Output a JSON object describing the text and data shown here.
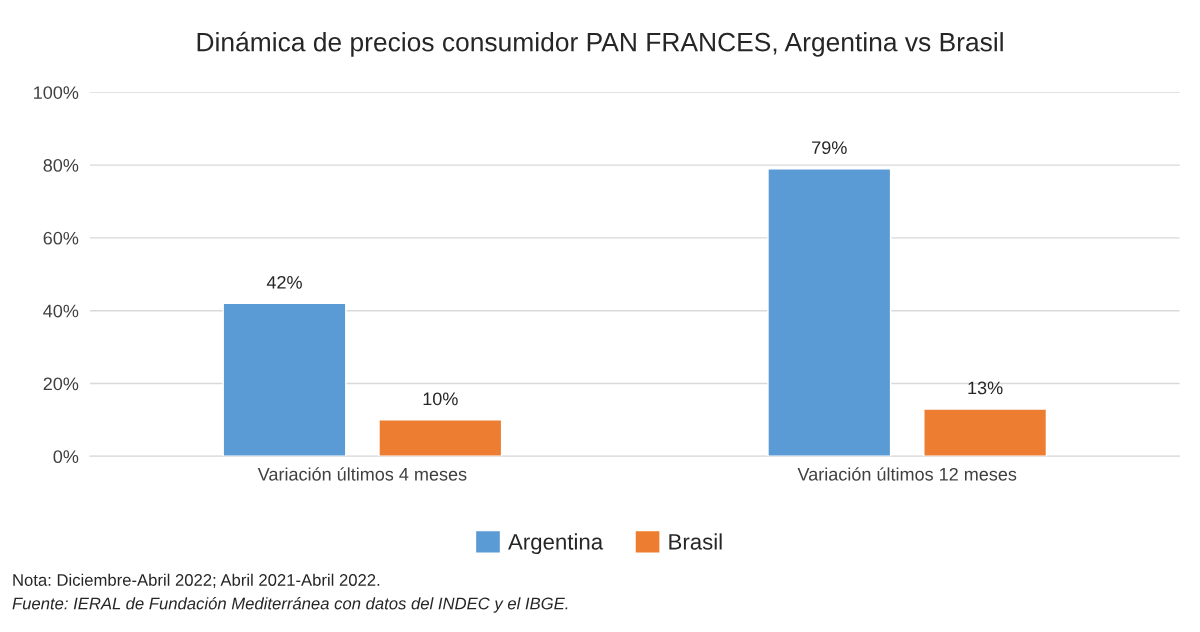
{
  "chart_data": {
    "type": "bar",
    "title": "Dinámica de precios consumidor PAN FRANCES, Argentina vs Brasil",
    "categories": [
      "Variación últimos 4 meses",
      "Variación últimos 12 meses"
    ],
    "series": [
      {
        "name": "Argentina",
        "color": "#5b9bd5",
        "values": [
          42,
          79
        ],
        "value_labels": [
          "42%",
          "79%"
        ]
      },
      {
        "name": "Brasil",
        "color": "#ed7d31",
        "values": [
          10,
          13
        ],
        "value_labels": [
          "10%",
          "13%"
        ]
      }
    ],
    "ylim": [
      0,
      100
    ],
    "yticks": [
      {
        "value": 0,
        "label": "0%"
      },
      {
        "value": 20,
        "label": "20%"
      },
      {
        "value": 40,
        "label": "40%"
      },
      {
        "value": 60,
        "label": "60%"
      },
      {
        "value": 80,
        "label": "80%"
      },
      {
        "value": 100,
        "label": "100%"
      }
    ],
    "grid": "y",
    "legend": "bottom",
    "annotations": [
      "Nota: Diciembre-Abril 2022; Abril 2021-Abril 2022.",
      "Fuente: IERAL de Fundación Mediterránea con datos del INDEC y el IBGE."
    ]
  }
}
